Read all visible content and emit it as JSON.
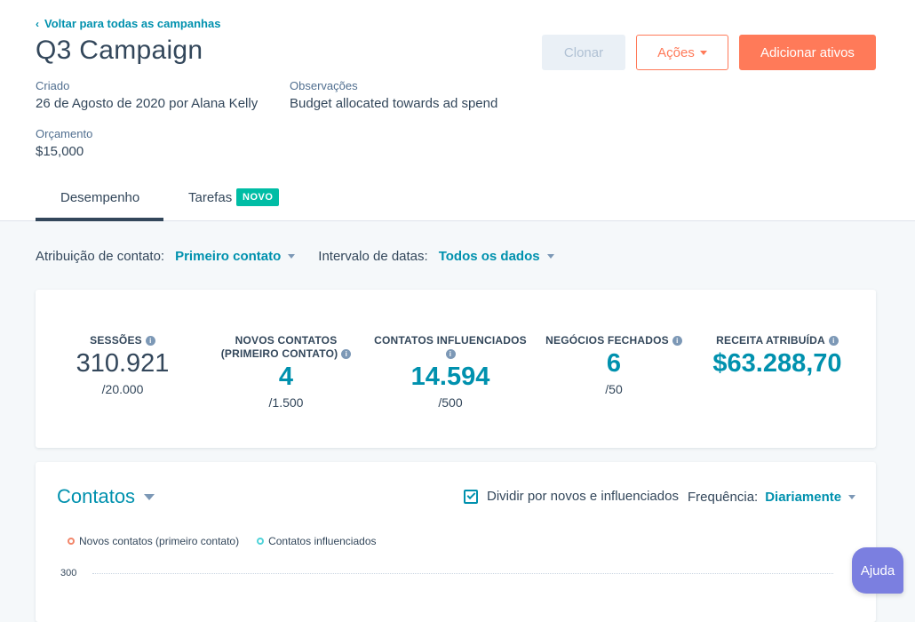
{
  "header": {
    "back_link": "Voltar para todas as campanhas",
    "title": "Q3 Campaign",
    "created_label": "Criado",
    "created_value": "26 de Agosto de 2020 por Alana Kelly",
    "notes_label": "Observações",
    "notes_value": "Budget allocated towards ad spend",
    "budget_label": "Orçamento",
    "budget_value": "$15,000"
  },
  "actions": {
    "clone": "Clonar",
    "actions": "Ações",
    "add_assets": "Adicionar ativos"
  },
  "tabs": [
    {
      "label": "Desempenho",
      "active": true
    },
    {
      "label": "Tarefas",
      "badge": "NOVO"
    }
  ],
  "filters": {
    "attribution_label": "Atribuição de contato:",
    "attribution_value": "Primeiro contato",
    "date_label": "Intervalo de datas:",
    "date_value": "Todos os dados"
  },
  "metrics": [
    {
      "label": "SESSÕES",
      "value": "310.921",
      "goal": "/20.000"
    },
    {
      "label_line1": "NOVOS CONTATOS",
      "label_line2": "(PRIMEIRO CONTATO)",
      "value": "4",
      "goal": "/1.500"
    },
    {
      "label": "CONTATOS INFLUENCIADOS",
      "value": "14.594",
      "goal": "/500"
    },
    {
      "label": "NEGÓCIOS FECHADOS",
      "value": "6",
      "goal": "/50"
    },
    {
      "label": "RECEITA ATRIBUÍDA",
      "value": "$63.288,70"
    }
  ],
  "chart": {
    "title": "Contatos",
    "split_label": "Dividir por novos e influenciados",
    "split_checked": true,
    "frequency_label": "Frequência:",
    "frequency_value": "Diariamente",
    "legend": [
      {
        "name": "Novos contatos (primeiro contato)",
        "color": "#f2866a"
      },
      {
        "name": "Contatos influenciados",
        "color": "#51d3d9"
      }
    ],
    "y_tick": "300"
  },
  "help": "Ajuda"
}
